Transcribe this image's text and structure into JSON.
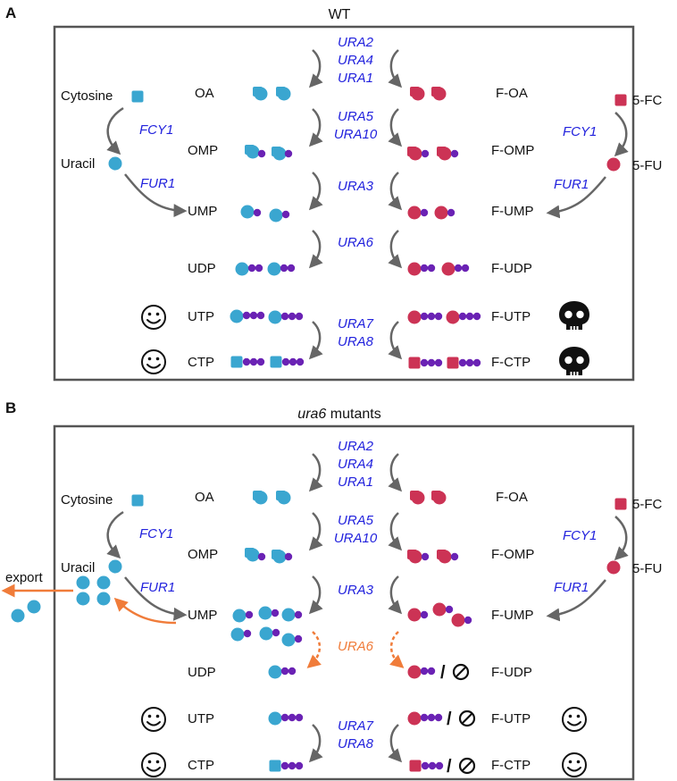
{
  "colors": {
    "uracil": "#3aa6d0",
    "fluoro": "#cc3355",
    "phosphate": "#6a22b4",
    "enzyme": "#2222dd",
    "disrupted": "#f07c3a",
    "arrow": "#666666",
    "frame": "#555555"
  },
  "panelA": {
    "letter": "A",
    "title": "WT",
    "left": {
      "cytosine": "Cytosine",
      "uracil": "Uracil",
      "fcy1": "FCY1",
      "fur1": "FUR1"
    },
    "right": {
      "fc": "5-FC",
      "fu": "5-FU",
      "fcy1": "FCY1",
      "fur1": "FUR1"
    },
    "leftLabels": [
      "OA",
      "OMP",
      "UMP",
      "UDP",
      "UTP",
      "CTP"
    ],
    "rightLabels": [
      "F-OA",
      "F-OMP",
      "F-UMP",
      "F-UDP",
      "F-UTP",
      "F-CTP"
    ],
    "enzymes": {
      "e1a": "URA2",
      "e1b": "URA4",
      "e1c": "URA1",
      "e2a": "URA5",
      "e2b": "URA10",
      "e3": "URA3",
      "e4": "URA6",
      "e5a": "URA7",
      "e5b": "URA8"
    }
  },
  "panelB": {
    "letter": "B",
    "title_italic": "ura6",
    "title_rest": " mutants",
    "left": {
      "cytosine": "Cytosine",
      "uracil": "Uracil",
      "fcy1": "FCY1",
      "fur1": "FUR1",
      "export": "export"
    },
    "right": {
      "fc": "5-FC",
      "fu": "5-FU",
      "fcy1": "FCY1",
      "fur1": "FUR1"
    },
    "leftLabels": [
      "OA",
      "OMP",
      "UMP",
      "UDP",
      "UTP",
      "CTP"
    ],
    "rightLabels": [
      "F-OA",
      "F-OMP",
      "F-UMP",
      "F-UDP",
      "F-UTP",
      "F-CTP"
    ],
    "enzymes": {
      "e1a": "URA2",
      "e1b": "URA4",
      "e1c": "URA1",
      "e2a": "URA5",
      "e2b": "URA10",
      "e3": "URA3",
      "e4": "URA6",
      "e5a": "URA7",
      "e5b": "URA8"
    },
    "slash": "/"
  }
}
